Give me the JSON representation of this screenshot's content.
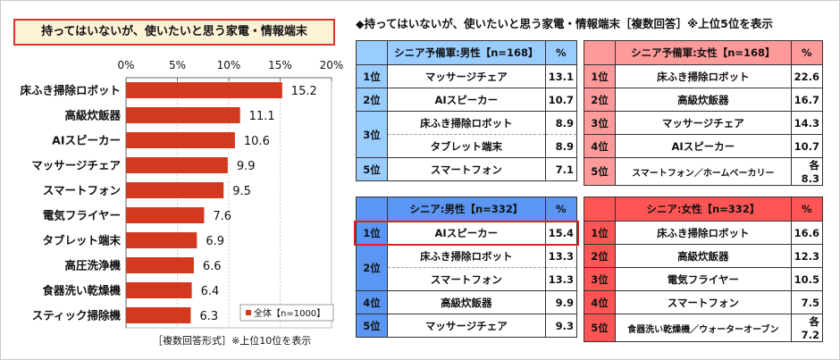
{
  "chart_data": {
    "type": "bar",
    "orientation": "horizontal",
    "title": "持ってはいないが、使いたいと思う家電・情報端末",
    "categories": [
      "床ふき掃除ロボット",
      "高級炊飯器",
      "AIスピーカー",
      "マッサージチェア",
      "スマートフォン",
      "電気フライヤー",
      "タブレット端末",
      "高圧洗浄機",
      "食器洗い乾燥機",
      "スティック掃除機"
    ],
    "series": [
      {
        "name": "全体【n=1000】",
        "values": [
          15.2,
          11.1,
          10.6,
          9.9,
          9.5,
          7.6,
          6.9,
          6.6,
          6.4,
          6.3
        ]
      }
    ],
    "xlim": [
      0,
      20
    ],
    "xticks": [
      "0%",
      "5%",
      "10%",
      "15%",
      "20%"
    ],
    "grid": true,
    "legend": "bottom-right",
    "bar_color": "#d2391f",
    "footnote": "［複数回答形式］※上位10位を表示"
  },
  "rankings": {
    "title": "◆持ってはいないが、使いたいと思う家電・情報端末［複数回答］※上位5位を表示",
    "tables": [
      {
        "header": "シニア予備軍:男性【n=168】",
        "pct": "%",
        "color": "#99ccff",
        "rows": [
          {
            "rank": "1位",
            "item": "マッサージチェア",
            "value": "13.1"
          },
          {
            "rank": "2位",
            "item": "AIスピーカー",
            "value": "10.7"
          },
          {
            "rank": "3位",
            "item": "床ふき掃除ロボット",
            "value": "8.9",
            "span": 2
          },
          {
            "item": "タブレット端末",
            "value": "8.9"
          },
          {
            "rank": "5位",
            "item": "スマートフォン",
            "value": "7.1"
          }
        ]
      },
      {
        "header": "シニア予備軍:女性【n=168】",
        "pct": "%",
        "color": "#ff9a9a",
        "rows": [
          {
            "rank": "1位",
            "item": "床ふき掃除ロボット",
            "value": "22.6"
          },
          {
            "rank": "2位",
            "item": "高級炊飯器",
            "value": "16.7"
          },
          {
            "rank": "3位",
            "item": "マッサージチェア",
            "value": "14.3"
          },
          {
            "rank": "4位",
            "item": "AIスピーカー",
            "value": "10.7"
          },
          {
            "rank": "5位",
            "item": "スマートフォン／ホームベーカリー",
            "value": "各8.3",
            "small": true
          }
        ]
      },
      {
        "header": "シニア:男性【n=332】",
        "pct": "%",
        "color": "#5b96f2",
        "highlight_first": true,
        "rows": [
          {
            "rank": "1位",
            "item": "AIスピーカー",
            "value": "15.4"
          },
          {
            "rank": "2位",
            "item": "床ふき掃除ロボット",
            "value": "13.3",
            "span": 2
          },
          {
            "item": "スマートフォン",
            "value": "13.3"
          },
          {
            "rank": "4位",
            "item": "高級炊飯器",
            "value": "9.9"
          },
          {
            "rank": "5位",
            "item": "マッサージチェア",
            "value": "9.3"
          }
        ]
      },
      {
        "header": "シニア:女性【n=332】",
        "pct": "%",
        "color": "#ff5555",
        "rows": [
          {
            "rank": "1位",
            "item": "床ふき掃除ロボット",
            "value": "16.6"
          },
          {
            "rank": "2位",
            "item": "高級炊飯器",
            "value": "12.3"
          },
          {
            "rank": "3位",
            "item": "電気フライヤー",
            "value": "10.5"
          },
          {
            "rank": "4位",
            "item": "スマートフォン",
            "value": "7.5"
          },
          {
            "rank": "5位",
            "item": "食器洗い乾燥機／ウォーターオーブン",
            "value": "各7.2",
            "small": true
          }
        ]
      }
    ]
  }
}
